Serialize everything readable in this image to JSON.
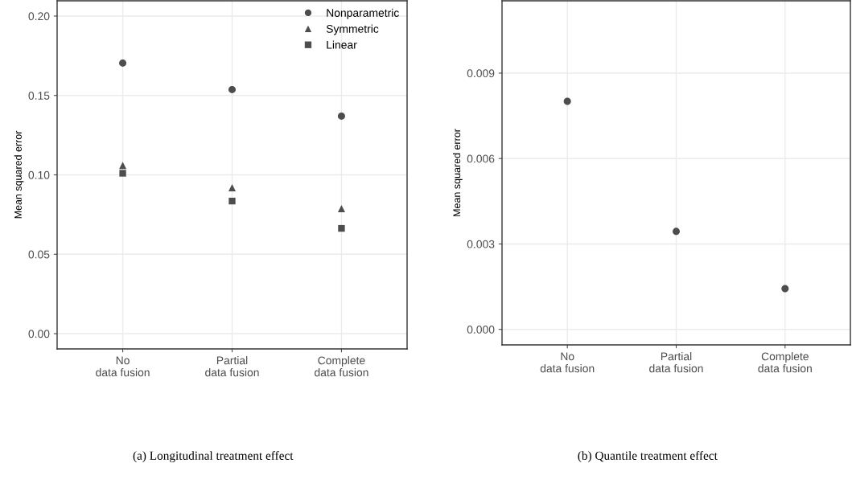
{
  "chart_data": [
    {
      "type": "scatter",
      "ylabel": "Mean squared error",
      "categories": [
        "No\ndata fusion",
        "Partial\ndata fusion",
        "Complete\ndata fusion"
      ],
      "series": [
        {
          "name": "Nonparametric",
          "color": "#4d4d4d",
          "marker": "circle",
          "values": [
            0.1704,
            0.1537,
            0.137
          ]
        },
        {
          "name": "Symmetric",
          "color": "#4d4d4d",
          "marker": "triangle",
          "values": [
            0.106,
            0.0919,
            0.0788
          ]
        },
        {
          "name": "Linear",
          "color": "#4d4d4d",
          "marker": "square",
          "values": [
            0.101,
            0.0835,
            0.0663
          ]
        }
      ],
      "ylim": [
        -0.0096,
        0.2096
      ],
      "yticks": [
        {
          "value": 0,
          "label": "0.00"
        },
        0.05,
        {
          "value": 0.1,
          "label": "0.10"
        },
        0.15,
        {
          "value": 0.2,
          "label": "0.20"
        }
      ],
      "grid": true,
      "legend": "top right",
      "annotations": [
        "(a) Longitudinal treatment effect"
      ]
    },
    {
      "type": "scatter",
      "ylabel": "Mean squared error",
      "categories": [
        "No\ndata fusion",
        "Partial\ndata fusion",
        "Complete\ndata fusion"
      ],
      "series": [
        {
          "color": "#4d4d4d",
          "marker": "circle",
          "values": [
            0.00801,
            0.00344,
            0.00143
          ]
        }
      ],
      "ylim": [
        -0.000545,
        0.01154
      ],
      "yticks": [
        {
          "value": 0,
          "label": "0.000"
        },
        0.003,
        0.006,
        0.009
      ],
      "grid": true,
      "annotations": [
        "(b) Quantile treatment effect"
      ]
    }
  ]
}
